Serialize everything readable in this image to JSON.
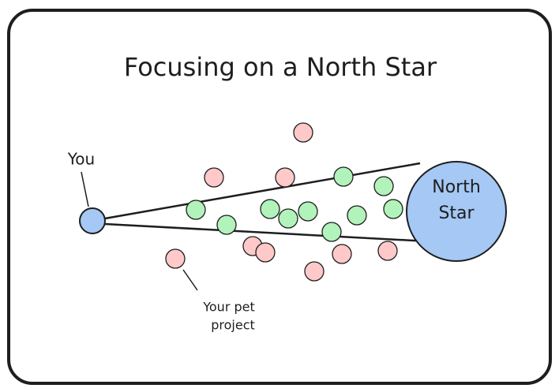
{
  "title": "Focusing on a North Star",
  "labels": {
    "you": "You",
    "north_star": [
      "North",
      "Star"
    ],
    "pet_project": [
      "Your pet",
      "project"
    ]
  }
}
